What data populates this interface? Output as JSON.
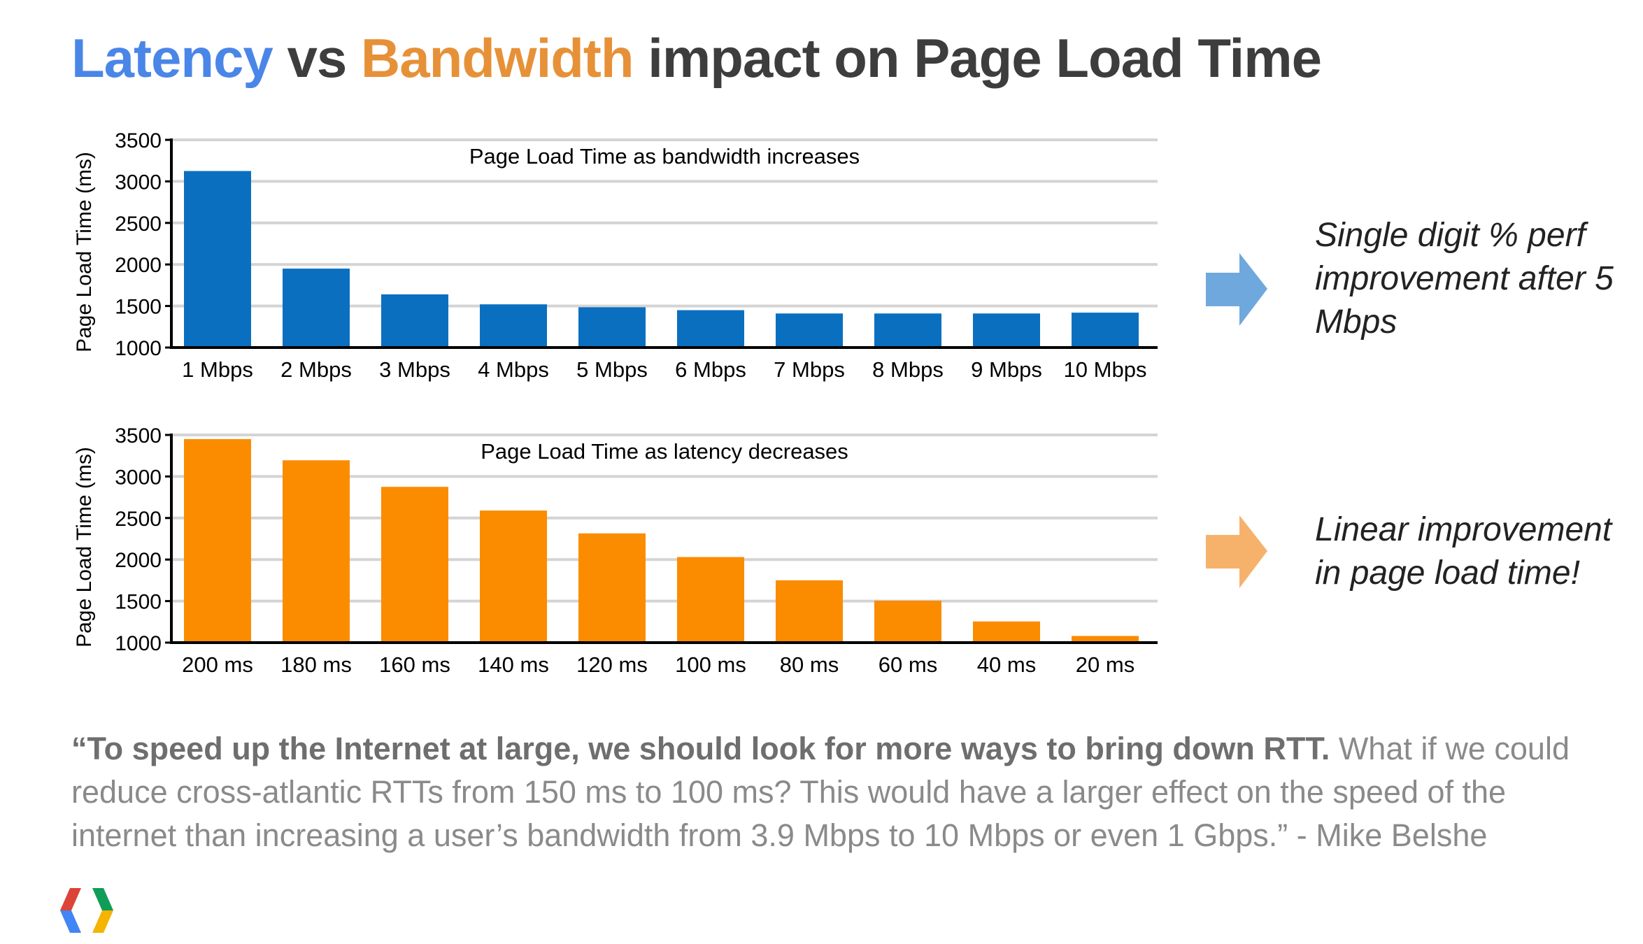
{
  "header": {
    "title_latency": "Latency",
    "title_vs": "vs",
    "title_bandwidth": "Bandwidth",
    "title_rest": "impact on Page Load Time"
  },
  "colors": {
    "latency_title": "#4a86e8",
    "bandwidth_title": "#e69138",
    "bandwidth_bars": "#0b6fc0",
    "latency_bars": "#fb8c00",
    "arrow_blue": "#6fa8dc",
    "arrow_orange": "#f6b26b"
  },
  "chart_data": [
    {
      "type": "bar",
      "title": "Page Load Time as bandwidth increases",
      "xlabel": "",
      "ylabel": "Page Load Time (ms)",
      "ylim": [
        1000,
        3500
      ],
      "yticks": [
        1000,
        1500,
        2000,
        2500,
        3000,
        3500
      ],
      "grid": true,
      "categories": [
        "1 Mbps",
        "2 Mbps",
        "3 Mbps",
        "4 Mbps",
        "5 Mbps",
        "6 Mbps",
        "7 Mbps",
        "8 Mbps",
        "9 Mbps",
        "10 Mbps"
      ],
      "values": [
        3125,
        1950,
        1640,
        1520,
        1485,
        1450,
        1410,
        1410,
        1410,
        1420
      ]
    },
    {
      "type": "bar",
      "title": "Page Load Time as latency decreases",
      "xlabel": "",
      "ylabel": "Page Load Time (ms)",
      "ylim": [
        1000,
        3500
      ],
      "yticks": [
        1000,
        1500,
        2000,
        2500,
        3000,
        3500
      ],
      "grid": true,
      "categories": [
        "200 ms",
        "180 ms",
        "160 ms",
        "140 ms",
        "120 ms",
        "100 ms",
        "80 ms",
        "60 ms",
        "40 ms",
        "20 ms"
      ],
      "values": [
        3450,
        3195,
        2875,
        2590,
        2315,
        2030,
        1750,
        1505,
        1255,
        1080
      ]
    }
  ],
  "callouts": {
    "bandwidth": "Single digit % perf improvement after 5 Mbps",
    "latency": "Linear improvement in page load time!"
  },
  "quote": {
    "bold": "“To speed up the Internet at large, we should look for more ways to bring down RTT.",
    "rest": " What if we could reduce cross-atlantic RTTs from 150 ms to 100 ms? This would have a larger effect on the speed of the internet than increasing a user’s bandwidth from 3.9 Mbps to 10 Mbps or even 1 Gbps.” - Mike Belshe"
  },
  "logo": {
    "icon": "chrome-developers-logo-icon"
  }
}
